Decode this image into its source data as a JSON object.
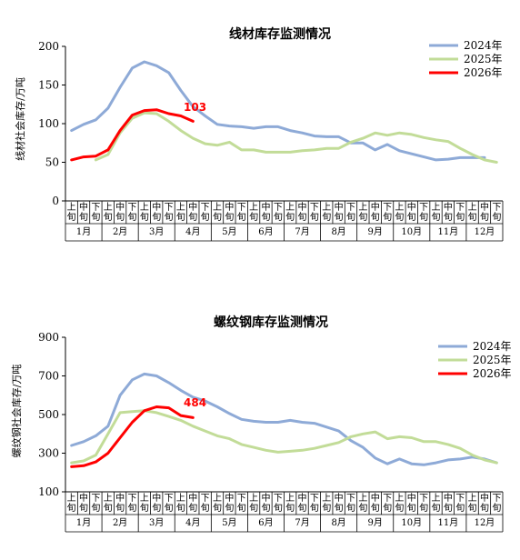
{
  "chart_data": [
    {
      "type": "line",
      "title": "线材库存监测情况",
      "ylabel": "线材社会库存/万吨",
      "ylim": [
        0,
        200
      ],
      "yticks": [
        0,
        50,
        100,
        150,
        200
      ],
      "ten_day_labels": [
        "上",
        "中",
        "下",
        "上",
        "中",
        "下",
        "上",
        "中",
        "下",
        "上",
        "中",
        "下",
        "上",
        "中",
        "下",
        "上",
        "中",
        "下",
        "上",
        "中",
        "下",
        "上",
        "中",
        "下",
        "上",
        "中",
        "下",
        "上",
        "中",
        "下",
        "上",
        "中",
        "下",
        "上",
        "中",
        "下"
      ],
      "months": [
        "1月",
        "2月",
        "3月",
        "4月",
        "5月",
        "6月",
        "7月",
        "8月",
        "9月",
        "10月",
        "11月",
        "12月"
      ],
      "series": [
        {
          "name": "2024年",
          "color": "#8eaad7",
          "values": [
            91,
            99,
            105,
            120,
            147,
            172,
            180,
            175,
            166,
            143,
            122,
            110,
            99,
            97,
            96,
            94,
            96,
            96,
            91,
            88,
            84,
            83,
            83,
            75,
            75,
            66,
            73,
            65,
            61,
            57,
            53,
            54,
            56,
            56,
            56,
            null
          ]
        },
        {
          "name": "2025年",
          "color": "#c2dc98",
          "values": [
            null,
            null,
            53,
            60,
            88,
            107,
            114,
            113,
            103,
            91,
            81,
            74,
            72,
            76,
            66,
            66,
            63,
            63,
            63,
            65,
            66,
            68,
            68,
            76,
            81,
            88,
            85,
            88,
            86,
            82,
            79,
            77,
            68,
            60,
            53,
            50
          ]
        },
        {
          "name": "2026年",
          "color": "#ff0000",
          "values": [
            53,
            57,
            58,
            66,
            91,
            111,
            117,
            118,
            113,
            110,
            103,
            null,
            null,
            null,
            null,
            null,
            null,
            null,
            null,
            null,
            null,
            null,
            null,
            null,
            null,
            null,
            null,
            null,
            null,
            null,
            null,
            null,
            null,
            null,
            null,
            null
          ]
        }
      ],
      "annotation": {
        "text": "103",
        "color": "#ff0000"
      }
    },
    {
      "type": "line",
      "title": "螺纹钢库存监测情况",
      "ylabel": "螺纹钢社会库存/万吨",
      "ylim": [
        100,
        900
      ],
      "yticks": [
        100,
        300,
        500,
        700,
        900
      ],
      "ten_day_labels": [
        "上",
        "中",
        "下",
        "上",
        "中",
        "下",
        "上",
        "中",
        "下",
        "上",
        "中",
        "下",
        "上",
        "中",
        "下",
        "上",
        "中",
        "下",
        "上",
        "中",
        "下",
        "上",
        "中",
        "下",
        "上",
        "中",
        "下",
        "上",
        "中",
        "下",
        "上",
        "中",
        "下",
        "上",
        "中",
        "下"
      ],
      "months": [
        "1月",
        "2月",
        "3月",
        "4月",
        "5月",
        "6月",
        "7月",
        "8月",
        "9月",
        "10月",
        "11月",
        "12月"
      ],
      "series": [
        {
          "name": "2024年",
          "color": "#8eaad7",
          "values": [
            340,
            360,
            390,
            440,
            600,
            680,
            710,
            700,
            665,
            625,
            590,
            570,
            540,
            505,
            475,
            465,
            460,
            460,
            470,
            460,
            455,
            435,
            415,
            365,
            330,
            275,
            245,
            270,
            245,
            240,
            250,
            265,
            270,
            280,
            270,
            250
          ]
        },
        {
          "name": "2025年",
          "color": "#c2dc98",
          "values": [
            250,
            260,
            290,
            400,
            510,
            515,
            520,
            510,
            490,
            470,
            440,
            415,
            390,
            375,
            345,
            330,
            315,
            305,
            310,
            315,
            325,
            340,
            355,
            385,
            400,
            410,
            375,
            385,
            380,
            360,
            360,
            345,
            325,
            290,
            265,
            250
          ]
        },
        {
          "name": "2026年",
          "color": "#ff0000",
          "values": [
            230,
            235,
            255,
            300,
            380,
            460,
            520,
            540,
            535,
            495,
            484,
            null,
            null,
            null,
            null,
            null,
            null,
            null,
            null,
            null,
            null,
            null,
            null,
            null,
            null,
            null,
            null,
            null,
            null,
            null,
            null,
            null,
            null,
            null,
            null,
            null
          ]
        }
      ],
      "annotation": {
        "text": "484",
        "color": "#ff0000"
      }
    }
  ]
}
